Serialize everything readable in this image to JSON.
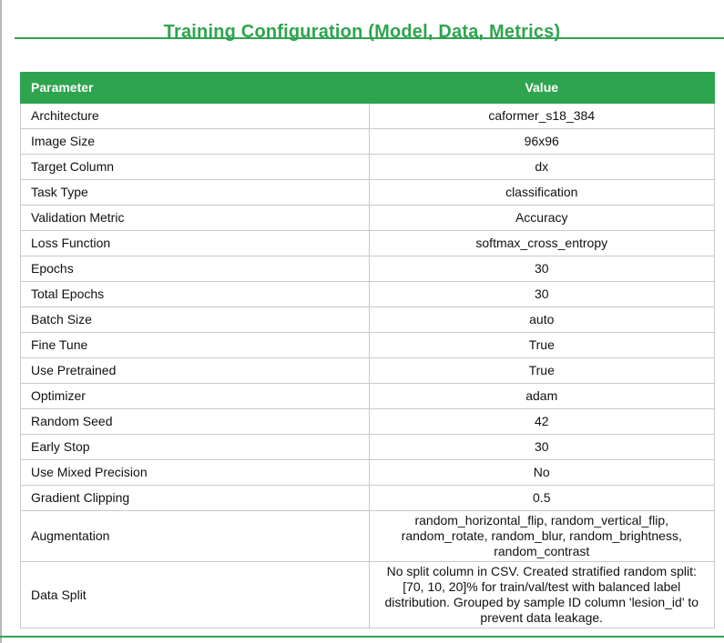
{
  "page": {
    "title": "Training Configuration (Model, Data, Metrics)"
  },
  "colors": {
    "accent_green": "#2ea44f",
    "table_border_gray": "#c9c9c9",
    "window_border_gray": "#b7b7b7",
    "text_color": "#111111"
  },
  "table": {
    "columns": [
      "Parameter",
      "Value"
    ],
    "rows": [
      {
        "parameter": "Architecture",
        "value": "caformer_s18_384"
      },
      {
        "parameter": "Image Size",
        "value": "96x96"
      },
      {
        "parameter": "Target Column",
        "value": "dx"
      },
      {
        "parameter": "Task Type",
        "value": "classification"
      },
      {
        "parameter": "Validation Metric",
        "value": "Accuracy"
      },
      {
        "parameter": "Loss Function",
        "value": "softmax_cross_entropy"
      },
      {
        "parameter": "Epochs",
        "value": "30"
      },
      {
        "parameter": "Total Epochs",
        "value": "30"
      },
      {
        "parameter": "Batch Size",
        "value": "auto"
      },
      {
        "parameter": "Fine Tune",
        "value": "True"
      },
      {
        "parameter": "Use Pretrained",
        "value": "True"
      },
      {
        "parameter": "Optimizer",
        "value": "adam"
      },
      {
        "parameter": "Random Seed",
        "value": "42"
      },
      {
        "parameter": "Early Stop",
        "value": "30"
      },
      {
        "parameter": "Use Mixed Precision",
        "value": "No"
      },
      {
        "parameter": "Gradient Clipping",
        "value": "0.5"
      },
      {
        "parameter": "Augmentation",
        "value": "random_horizontal_flip, random_vertical_flip, random_rotate, random_blur, random_brightness, random_contrast"
      },
      {
        "parameter": "Data Split",
        "value": "No split column in CSV. Created stratified random split: [70, 10, 20]% for train/val/test with balanced label distribution. Grouped by sample ID column 'lesion_id' to prevent data leakage."
      }
    ]
  }
}
